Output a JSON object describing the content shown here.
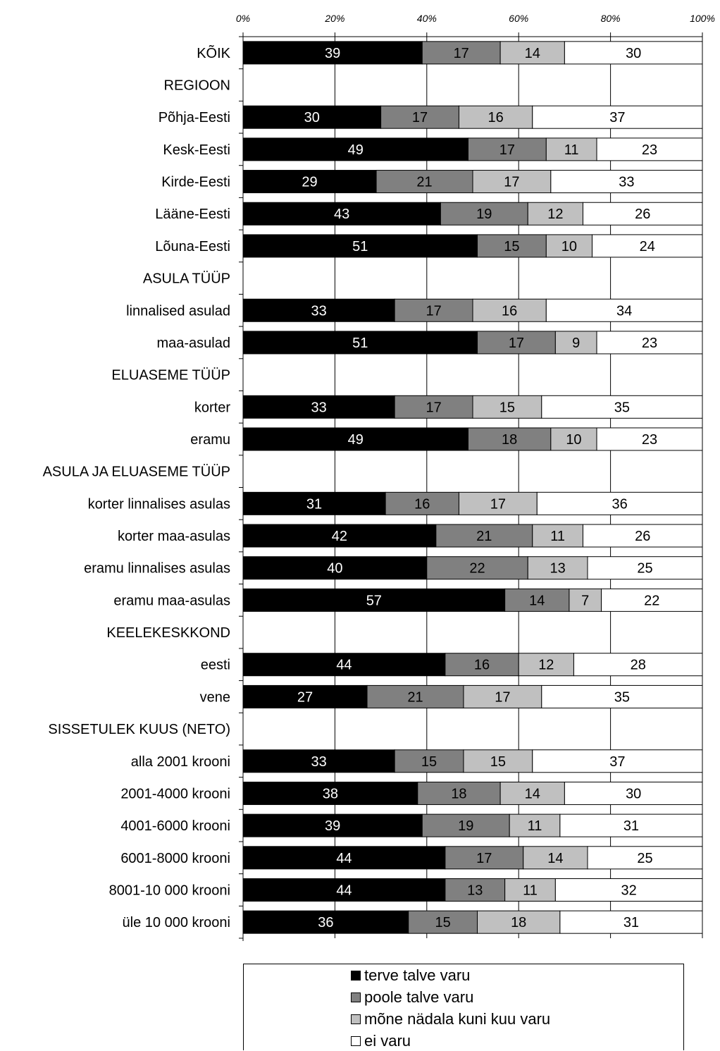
{
  "chart_data": {
    "type": "bar",
    "orientation": "horizontal",
    "stacked": true,
    "x_axis": {
      "ticks": [
        "0%",
        "20%",
        "40%",
        "60%",
        "80%",
        "100%"
      ],
      "xlim": [
        0,
        100
      ],
      "position": "top"
    },
    "grid": true,
    "rows": [
      {
        "label": "KÕIK",
        "values": [
          39,
          17,
          14,
          30
        ]
      },
      {
        "label": "REGIOON",
        "values": null
      },
      {
        "label": "Põhja-Eesti",
        "values": [
          30,
          17,
          16,
          37
        ]
      },
      {
        "label": "Kesk-Eesti",
        "values": [
          49,
          17,
          11,
          23
        ]
      },
      {
        "label": "Kirde-Eesti",
        "values": [
          29,
          21,
          17,
          33
        ]
      },
      {
        "label": "Lääne-Eesti",
        "values": [
          43,
          19,
          12,
          26
        ]
      },
      {
        "label": "Lõuna-Eesti",
        "values": [
          51,
          15,
          10,
          24
        ]
      },
      {
        "label": "ASULA TÜÜP",
        "values": null
      },
      {
        "label": "linnalised asulad",
        "values": [
          33,
          17,
          16,
          34
        ]
      },
      {
        "label": "maa-asulad",
        "values": [
          51,
          17,
          9,
          23
        ]
      },
      {
        "label": "ELUASEME TÜÜP",
        "values": null
      },
      {
        "label": "korter",
        "values": [
          33,
          17,
          15,
          35
        ]
      },
      {
        "label": "eramu",
        "values": [
          49,
          18,
          10,
          23
        ]
      },
      {
        "label": "ASULA JA ELUASEME TÜÜP",
        "values": null
      },
      {
        "label": "korter linnalises asulas",
        "values": [
          31,
          16,
          17,
          36
        ]
      },
      {
        "label": "korter maa-asulas",
        "values": [
          42,
          21,
          11,
          26
        ]
      },
      {
        "label": "eramu linnalises asulas",
        "values": [
          40,
          22,
          13,
          25
        ]
      },
      {
        "label": "eramu maa-asulas",
        "values": [
          57,
          14,
          7,
          22
        ]
      },
      {
        "label": "KEELEKESKKOND",
        "values": null
      },
      {
        "label": "eesti",
        "values": [
          44,
          16,
          12,
          28
        ]
      },
      {
        "label": "vene",
        "values": [
          27,
          21,
          17,
          35
        ]
      },
      {
        "label": "SISSETULEK KUUS (NETO)",
        "values": null
      },
      {
        "label": "alla 2001 krooni",
        "values": [
          33,
          15,
          15,
          37
        ]
      },
      {
        "label": "2001-4000 krooni",
        "values": [
          38,
          18,
          14,
          30
        ]
      },
      {
        "label": "4001-6000 krooni",
        "values": [
          39,
          19,
          11,
          31
        ]
      },
      {
        "label": "6001-8000 krooni",
        "values": [
          44,
          17,
          14,
          25
        ]
      },
      {
        "label": "8001-10 000 krooni",
        "values": [
          44,
          13,
          11,
          32
        ]
      },
      {
        "label": "üle 10 000 krooni",
        "values": [
          36,
          15,
          18,
          31
        ]
      }
    ],
    "series": [
      {
        "name": "terve talve varu",
        "color": "#000000",
        "label_color": "#ffffff"
      },
      {
        "name": "poole talve varu",
        "color": "#808080",
        "label_color": "#000000"
      },
      {
        "name": "mõne nädala kuni kuu varu",
        "color": "#c0c0c0",
        "label_color": "#000000"
      },
      {
        "name": "ei varu",
        "color": "#ffffff",
        "label_color": "#000000"
      }
    ],
    "legend_position": "bottom"
  }
}
